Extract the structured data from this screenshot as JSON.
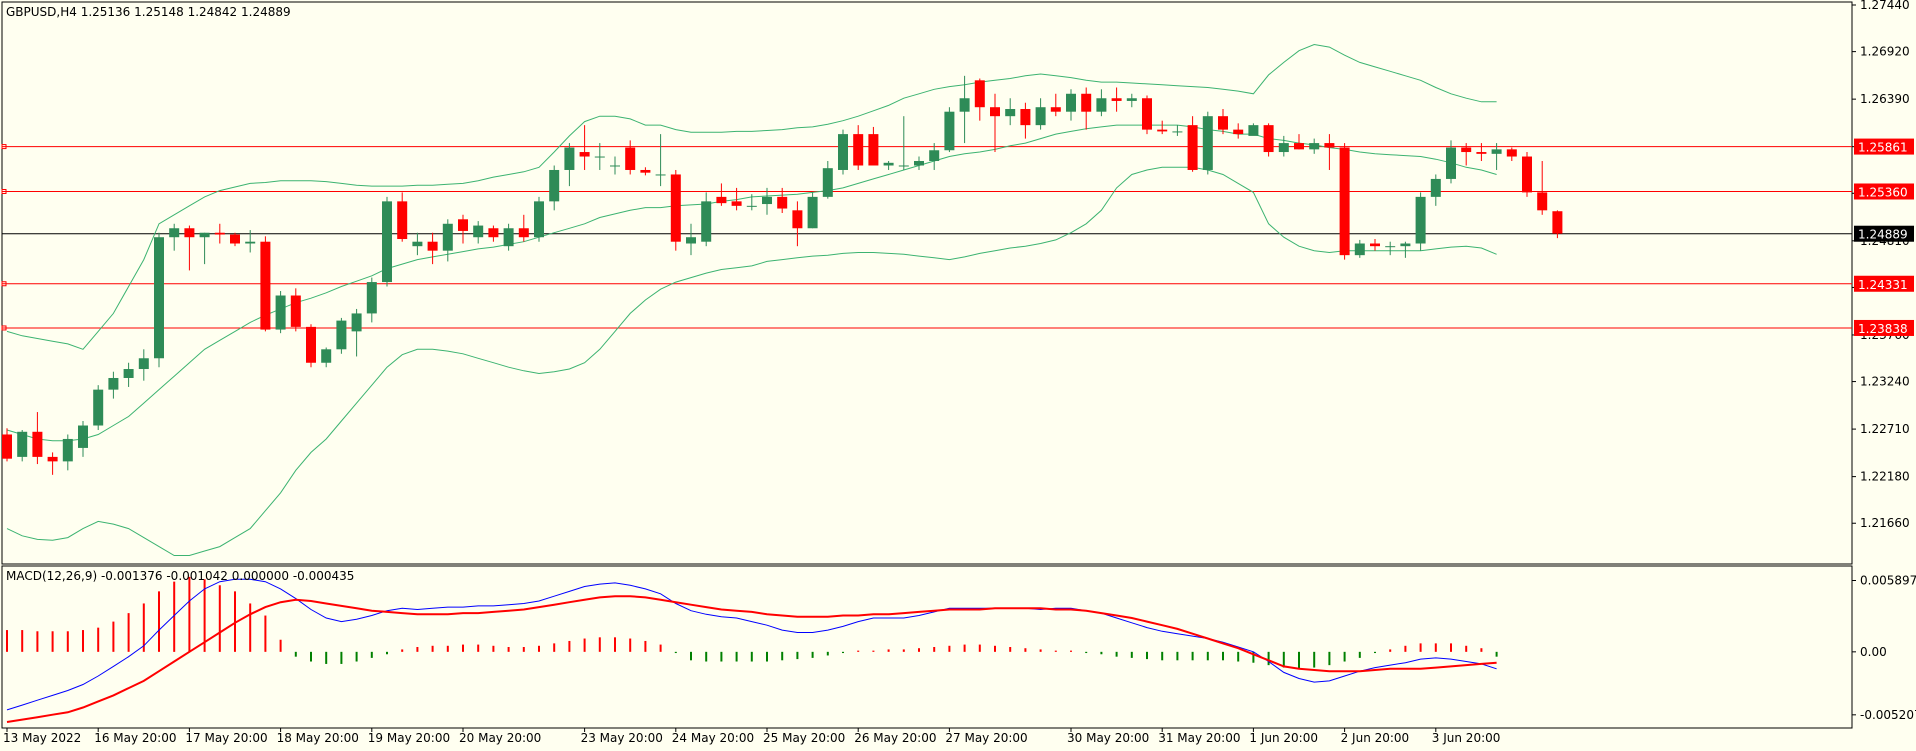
{
  "chart_data": {
    "type": "candlestick",
    "header": "GBPUSD,H4  1.25136 1.25148 1.24842 1.24889",
    "price_ticks": [
      "1.27440",
      "1.26920",
      "1.26390",
      "1.25860",
      "1.25340",
      "1.24810",
      "1.24290",
      "1.23760",
      "1.23240",
      "1.22710",
      "1.22180",
      "1.21660"
    ],
    "price_range": [
      1.2125,
      1.2744
    ],
    "current_price": 1.24889,
    "current_price_label": "1.24889",
    "levels": [
      {
        "price": 1.25861,
        "label": "1.25861"
      },
      {
        "price": 1.2536,
        "label": "1.25360"
      },
      {
        "price": 1.24331,
        "label": "1.24331"
      },
      {
        "price": 1.23838,
        "label": "1.23838"
      }
    ],
    "time_labels": [
      {
        "i": 0,
        "label": "13 May 2022"
      },
      {
        "i": 6,
        "label": "16 May 20:00"
      },
      {
        "i": 12,
        "label": "17 May 20:00"
      },
      {
        "i": 18,
        "label": "18 May 20:00"
      },
      {
        "i": 24,
        "label": "19 May 20:00"
      },
      {
        "i": 30,
        "label": "20 May 20:00"
      },
      {
        "i": 38,
        "label": "23 May 20:00"
      },
      {
        "i": 44,
        "label": "24 May 20:00"
      },
      {
        "i": 50,
        "label": "25 May 20:00"
      },
      {
        "i": 56,
        "label": "26 May 20:00"
      },
      {
        "i": 62,
        "label": "27 May 20:00"
      },
      {
        "i": 70,
        "label": "30 May 20:00"
      },
      {
        "i": 76,
        "label": "31 May 20:00"
      },
      {
        "i": 82,
        "label": "1 Jun 20:00"
      },
      {
        "i": 88,
        "label": "2 Jun 20:00"
      },
      {
        "i": 94,
        "label": "3 Jun 20:00"
      }
    ],
    "candles": [
      [
        1.2265,
        1.2272,
        1.2235,
        1.2238
      ],
      [
        1.224,
        1.227,
        1.2235,
        1.2268
      ],
      [
        1.2268,
        1.229,
        1.2232,
        1.224
      ],
      [
        1.224,
        1.2245,
        1.222,
        1.2235
      ],
      [
        1.2235,
        1.2265,
        1.2225,
        1.226
      ],
      [
        1.225,
        1.228,
        1.224,
        1.2275
      ],
      [
        1.2275,
        1.232,
        1.227,
        1.2315
      ],
      [
        1.2315,
        1.2335,
        1.2305,
        1.2328
      ],
      [
        1.2328,
        1.2345,
        1.2318,
        1.2338
      ],
      [
        1.2338,
        1.236,
        1.2325,
        1.235
      ],
      [
        1.235,
        1.249,
        1.234,
        1.2485
      ],
      [
        1.2485,
        1.25,
        1.247,
        1.2495
      ],
      [
        1.2495,
        1.2498,
        1.2448,
        1.2485
      ],
      [
        1.2485,
        1.249,
        1.2455,
        1.249
      ],
      [
        1.249,
        1.25,
        1.2478,
        1.2488
      ],
      [
        1.2488,
        1.249,
        1.2475,
        1.2478
      ],
      [
        1.2478,
        1.2493,
        1.2468,
        1.248
      ],
      [
        1.248,
        1.2486,
        1.238,
        1.2382
      ],
      [
        1.2382,
        1.2425,
        1.2378,
        1.242
      ],
      [
        1.242,
        1.2428,
        1.238,
        1.2385
      ],
      [
        1.2385,
        1.2388,
        1.234,
        1.2345
      ],
      [
        1.2345,
        1.2362,
        1.234,
        1.236
      ],
      [
        1.236,
        1.2395,
        1.2355,
        1.2392
      ],
      [
        1.238,
        1.2405,
        1.2352,
        1.24
      ],
      [
        1.24,
        1.244,
        1.239,
        1.2435
      ],
      [
        1.2435,
        1.253,
        1.243,
        1.2525
      ],
      [
        1.2525,
        1.2535,
        1.248,
        1.2483
      ],
      [
        1.2475,
        1.249,
        1.2465,
        1.248
      ],
      [
        1.248,
        1.249,
        1.2455,
        1.247
      ],
      [
        1.247,
        1.2505,
        1.2458,
        1.25
      ],
      [
        1.2505,
        1.251,
        1.2478,
        1.2492
      ],
      [
        1.2485,
        1.2503,
        1.2478,
        1.2498
      ],
      [
        1.2495,
        1.2498,
        1.248,
        1.2485
      ],
      [
        1.2475,
        1.25,
        1.247,
        1.2495
      ],
      [
        1.2495,
        1.251,
        1.248,
        1.2485
      ],
      [
        1.2485,
        1.253,
        1.248,
        1.2525
      ],
      [
        1.2525,
        1.2565,
        1.2515,
        1.256
      ],
      [
        1.256,
        1.259,
        1.2542,
        1.2585
      ],
      [
        1.258,
        1.261,
        1.256,
        1.2575
      ],
      [
        1.2575,
        1.259,
        1.256,
        1.2575
      ],
      [
        1.2565,
        1.2575,
        1.2555,
        1.2565
      ],
      [
        1.2585,
        1.2593,
        1.2555,
        1.256
      ],
      [
        1.256,
        1.2563,
        1.2554,
        1.2557
      ],
      [
        1.2555,
        1.26,
        1.2542,
        1.2555
      ],
      [
        1.2555,
        1.256,
        1.247,
        1.248
      ],
      [
        1.2478,
        1.25,
        1.2465,
        1.2485
      ],
      [
        1.248,
        1.2535,
        1.2475,
        1.2525
      ],
      [
        1.253,
        1.2545,
        1.252,
        1.2523
      ],
      [
        1.2525,
        1.254,
        1.2515,
        1.252
      ],
      [
        1.252,
        1.2533,
        1.2515,
        1.252
      ],
      [
        1.2522,
        1.254,
        1.251,
        1.253
      ],
      [
        1.253,
        1.254,
        1.2512,
        1.2517
      ],
      [
        1.2515,
        1.2525,
        1.2475,
        1.2495
      ],
      [
        1.2495,
        1.2535,
        1.2495,
        1.253
      ],
      [
        1.253,
        1.257,
        1.2528,
        1.2562
      ],
      [
        1.256,
        1.2605,
        1.2555,
        1.26
      ],
      [
        1.26,
        1.261,
        1.256,
        1.2565
      ],
      [
        1.26,
        1.2608,
        1.2565,
        1.2565
      ],
      [
        1.2565,
        1.257,
        1.256,
        1.2568
      ],
      [
        1.2565,
        1.262,
        1.256,
        1.2565
      ],
      [
        1.2565,
        1.2575,
        1.256,
        1.257
      ],
      [
        1.257,
        1.259,
        1.256,
        1.2582
      ],
      [
        1.2582,
        1.263,
        1.258,
        1.2625
      ],
      [
        1.2625,
        1.2665,
        1.259,
        1.264
      ],
      [
        1.266,
        1.2662,
        1.2615,
        1.263
      ],
      [
        1.263,
        1.2645,
        1.258,
        1.262
      ],
      [
        1.262,
        1.264,
        1.261,
        1.2628
      ],
      [
        1.2628,
        1.2635,
        1.2595,
        1.261
      ],
      [
        1.261,
        1.264,
        1.2605,
        1.263
      ],
      [
        1.263,
        1.2645,
        1.262,
        1.2625
      ],
      [
        1.2625,
        1.265,
        1.2615,
        1.2645
      ],
      [
        1.2645,
        1.2652,
        1.2605,
        1.2625
      ],
      [
        1.2625,
        1.265,
        1.262,
        1.264
      ],
      [
        1.264,
        1.2652,
        1.2625,
        1.2637
      ],
      [
        1.2637,
        1.2645,
        1.263,
        1.264
      ],
      [
        1.264,
        1.2643,
        1.26,
        1.2605
      ],
      [
        1.2605,
        1.2615,
        1.26,
        1.2603
      ],
      [
        1.2603,
        1.261,
        1.2598,
        1.2603
      ],
      [
        1.261,
        1.262,
        1.2558,
        1.256
      ],
      [
        1.256,
        1.2625,
        1.2555,
        1.262
      ],
      [
        1.262,
        1.2628,
        1.26,
        1.2605
      ],
      [
        1.2605,
        1.2612,
        1.2595,
        1.26
      ],
      [
        1.2598,
        1.2612,
        1.26,
        1.261
      ],
      [
        1.261,
        1.2612,
        1.2575,
        1.258
      ],
      [
        1.258,
        1.2598,
        1.2575,
        1.259
      ],
      [
        1.259,
        1.26,
        1.2583,
        1.2583
      ],
      [
        1.2583,
        1.2595,
        1.2578,
        1.259
      ],
      [
        1.259,
        1.26,
        1.256,
        1.2585
      ],
      [
        1.2585,
        1.259,
        1.246,
        1.2465
      ],
      [
        1.2465,
        1.2482,
        1.2462,
        1.2478
      ],
      [
        1.2478,
        1.2483,
        1.247,
        1.2475
      ],
      [
        1.2475,
        1.248,
        1.2465,
        1.2475
      ],
      [
        1.2475,
        1.248,
        1.2462,
        1.2478
      ],
      [
        1.2478,
        1.2535,
        1.247,
        1.253
      ],
      [
        1.253,
        1.2555,
        1.252,
        1.255
      ],
      [
        1.255,
        1.2593,
        1.2545,
        1.2585
      ],
      [
        1.2585,
        1.259,
        1.2565,
        1.258
      ],
      [
        1.258,
        1.259,
        1.257,
        1.2578
      ],
      [
        1.2578,
        1.259,
        1.256,
        1.2583
      ],
      [
        1.2583,
        1.2585,
        1.257,
        1.2575
      ],
      [
        1.2575,
        1.258,
        1.253,
        1.2535
      ],
      [
        1.2535,
        1.257,
        1.251,
        1.2515
      ],
      [
        1.2514,
        1.2515,
        1.2484,
        1.2489
      ]
    ],
    "bb_upper": [
      1.238,
      1.2375,
      1.2372,
      1.2369,
      1.2366,
      1.236,
      1.238,
      1.24,
      1.243,
      1.246,
      1.25,
      1.251,
      1.252,
      1.253,
      1.2537,
      1.2541,
      1.2545,
      1.2546,
      1.2548,
      1.2548,
      1.2548,
      1.2547,
      1.2545,
      1.2543,
      1.2542,
      1.2542,
      1.2542,
      1.2543,
      1.2543,
      1.2544,
      1.2545,
      1.2548,
      1.2552,
      1.2555,
      1.2558,
      1.2563,
      1.258,
      1.2598,
      1.2614,
      1.262,
      1.262,
      1.2617,
      1.261,
      1.261,
      1.2605,
      1.2602,
      1.2602,
      1.2602,
      1.2603,
      1.2603,
      1.2604,
      1.2605,
      1.2607,
      1.2608,
      1.2611,
      1.2615,
      1.262,
      1.2626,
      1.2632,
      1.264,
      1.2645,
      1.265,
      1.2653,
      1.2655,
      1.2658,
      1.266,
      1.2662,
      1.2665,
      1.2667,
      1.2665,
      1.2663,
      1.266,
      1.2658,
      1.2658,
      1.2657,
      1.2656,
      1.2655,
      1.2654,
      1.2653,
      1.2652,
      1.265,
      1.2648,
      1.2645,
      1.2666,
      1.268,
      1.2693,
      1.27,
      1.2697,
      1.2688,
      1.268,
      1.2675,
      1.267,
      1.2665,
      1.266,
      1.2652,
      1.2645,
      1.264,
      1.2636,
      1.2636
    ],
    "bb_middle": [
      1.227,
      1.2265,
      1.226,
      1.2258,
      1.2258,
      1.226,
      1.2265,
      1.2275,
      1.2285,
      1.23,
      1.2315,
      1.233,
      1.2345,
      1.236,
      1.237,
      1.238,
      1.239,
      1.2398,
      1.2405,
      1.2412,
      1.2417,
      1.2423,
      1.243,
      1.2436,
      1.2442,
      1.245,
      1.2455,
      1.246,
      1.2463,
      1.2466,
      1.2469,
      1.2472,
      1.2474,
      1.2477,
      1.248,
      1.2485,
      1.249,
      1.2495,
      1.25,
      1.2507,
      1.2511,
      1.2515,
      1.2518,
      1.2518,
      1.252,
      1.2521,
      1.2522,
      1.2525,
      1.2527,
      1.253,
      1.2531,
      1.2532,
      1.2533,
      1.2535,
      1.2537,
      1.254,
      1.2545,
      1.255,
      1.2555,
      1.256,
      1.2565,
      1.257,
      1.2575,
      1.2578,
      1.258,
      1.2583,
      1.2587,
      1.259,
      1.2595,
      1.26,
      1.2603,
      1.2606,
      1.2608,
      1.261,
      1.261,
      1.261,
      1.261,
      1.261,
      1.2608,
      1.2605,
      1.2603,
      1.26,
      1.26,
      1.2595,
      1.2593,
      1.259,
      1.2588,
      1.2585,
      1.2583,
      1.258,
      1.2578,
      1.2577,
      1.2576,
      1.2575,
      1.2572,
      1.2568,
      1.2563,
      1.256,
      1.2555
    ],
    "bb_lower": [
      1.216,
      1.2152,
      1.2148,
      1.2147,
      1.215,
      1.216,
      1.2168,
      1.2165,
      1.216,
      1.215,
      1.214,
      1.213,
      1.213,
      1.2135,
      1.214,
      1.215,
      1.216,
      1.218,
      1.22,
      1.2225,
      1.2245,
      1.226,
      1.228,
      1.23,
      1.232,
      1.234,
      1.2354,
      1.236,
      1.236,
      1.2358,
      1.2355,
      1.235,
      1.2345,
      1.234,
      1.2336,
      1.2333,
      1.2335,
      1.2338,
      1.2345,
      1.236,
      1.238,
      1.24,
      1.2415,
      1.2427,
      1.2435,
      1.244,
      1.2445,
      1.2449,
      1.2451,
      1.2453,
      1.2458,
      1.246,
      1.2462,
      1.2464,
      1.2465,
      1.2467,
      1.2468,
      1.2468,
      1.2467,
      1.2466,
      1.2464,
      1.2462,
      1.246,
      1.2463,
      1.2467,
      1.247,
      1.2473,
      1.2475,
      1.2478,
      1.2482,
      1.249,
      1.25,
      1.2515,
      1.254,
      1.2555,
      1.256,
      1.2563,
      1.2563,
      1.2563,
      1.256,
      1.2555,
      1.2545,
      1.2535,
      1.25,
      1.2485,
      1.2475,
      1.247,
      1.2468,
      1.247,
      1.247,
      1.247,
      1.247,
      1.247,
      1.247,
      1.2472,
      1.2474,
      1.2475,
      1.2473,
      1.2466
    ],
    "macd": {
      "header": "MACD(12,26,9) -0.001376 -0.001042 0.000000 -0.000435",
      "ticks": [
        "0.005897",
        "0.00",
        "-0.005207"
      ],
      "range": [
        -0.0058,
        0.0066
      ],
      "histogram": [
        0.0018,
        0.0018,
        0.0017,
        0.0017,
        0.0017,
        0.0018,
        0.002,
        0.0025,
        0.0032,
        0.004,
        0.005,
        0.0058,
        0.0062,
        0.006,
        0.0055,
        0.005,
        0.004,
        0.003,
        0.001,
        -0.0004,
        -0.0008,
        -0.001,
        -0.001,
        -0.0008,
        -0.0005,
        -0.0002,
        0.0002,
        0.0004,
        0.0005,
        0.0005,
        0.0006,
        0.0006,
        0.0005,
        0.0004,
        0.0004,
        0.0005,
        0.0007,
        0.0009,
        0.0011,
        0.0012,
        0.0012,
        0.0011,
        0.0009,
        0.0006,
        -0.0001,
        -0.0007,
        -0.0008,
        -0.0008,
        -0.0008,
        -0.0008,
        -0.0008,
        -0.0007,
        -0.0006,
        -0.0005,
        -0.0003,
        -0.0001,
        0.0001,
        0.0001,
        0.0002,
        0.0002,
        0.0003,
        0.0004,
        0.0005,
        0.0006,
        0.0006,
        0.0005,
        0.0004,
        0.0003,
        0.0002,
        0.0001,
        0.0001,
        -0.0001,
        -0.0002,
        -0.0004,
        -0.0005,
        -0.0006,
        -0.0007,
        -0.0007,
        -0.0007,
        -0.0007,
        -0.0007,
        -0.0008,
        -0.0009,
        -0.0011,
        -0.0013,
        -0.0014,
        -0.0013,
        -0.0011,
        -0.0008,
        -0.0005,
        -0.0001,
        0.0002,
        0.0005,
        0.0007,
        0.0007,
        0.0007,
        0.0005,
        0.0003,
        -0.0004
      ],
      "main": [
        -0.0048,
        -0.0044,
        -0.004,
        -0.0036,
        -0.0032,
        -0.0027,
        -0.002,
        -0.0012,
        -0.0004,
        0.0005,
        0.0018,
        0.003,
        0.0042,
        0.0052,
        0.0058,
        0.006,
        0.006,
        0.0058,
        0.0052,
        0.0044,
        0.0035,
        0.0028,
        0.0025,
        0.0027,
        0.003,
        0.0034,
        0.0036,
        0.0035,
        0.0036,
        0.0037,
        0.0037,
        0.0038,
        0.0038,
        0.0039,
        0.004,
        0.0042,
        0.0046,
        0.005,
        0.0054,
        0.0056,
        0.0057,
        0.0055,
        0.0052,
        0.0048,
        0.004,
        0.0034,
        0.0031,
        0.0029,
        0.0028,
        0.0025,
        0.0022,
        0.0018,
        0.0016,
        0.0016,
        0.0018,
        0.0021,
        0.0025,
        0.0028,
        0.0028,
        0.0028,
        0.003,
        0.0033,
        0.0036,
        0.0036,
        0.0036,
        0.0036,
        0.0036,
        0.0036,
        0.0035,
        0.0036,
        0.0036,
        0.0034,
        0.0032,
        0.0028,
        0.0024,
        0.002,
        0.0017,
        0.0015,
        0.0013,
        0.0011,
        0.0008,
        0.0004,
        0.0,
        -0.0008,
        -0.0017,
        -0.0022,
        -0.0025,
        -0.0024,
        -0.002,
        -0.0016,
        -0.0013,
        -0.0011,
        -0.0009,
        -0.0006,
        -0.0005,
        -0.0006,
        -0.0008,
        -0.001,
        -0.0014
      ],
      "signal": [
        -0.0058,
        -0.0056,
        -0.0054,
        -0.0052,
        -0.005,
        -0.0046,
        -0.0041,
        -0.0036,
        -0.003,
        -0.0024,
        -0.0016,
        -0.0008,
        0.0,
        0.0008,
        0.0016,
        0.0024,
        0.0031,
        0.0037,
        0.0041,
        0.0043,
        0.0042,
        0.004,
        0.0038,
        0.0036,
        0.0034,
        0.0033,
        0.0032,
        0.0031,
        0.0031,
        0.0031,
        0.0032,
        0.0032,
        0.0033,
        0.0034,
        0.0035,
        0.0037,
        0.0039,
        0.0041,
        0.0043,
        0.0045,
        0.0046,
        0.0046,
        0.0045,
        0.0043,
        0.0041,
        0.0039,
        0.0037,
        0.0035,
        0.0034,
        0.0033,
        0.0031,
        0.003,
        0.0029,
        0.0029,
        0.0029,
        0.003,
        0.003,
        0.0031,
        0.0031,
        0.0032,
        0.0033,
        0.0034,
        0.0035,
        0.0035,
        0.0035,
        0.0036,
        0.0036,
        0.0036,
        0.0036,
        0.0035,
        0.0035,
        0.0034,
        0.0032,
        0.003,
        0.0028,
        0.0025,
        0.0022,
        0.0019,
        0.0015,
        0.0011,
        0.0007,
        0.0003,
        -0.0002,
        -0.0007,
        -0.0012,
        -0.0014,
        -0.0015,
        -0.0016,
        -0.0016,
        -0.0016,
        -0.0015,
        -0.0014,
        -0.0014,
        -0.0014,
        -0.0013,
        -0.0012,
        -0.0011,
        -0.001,
        -0.0009
      ]
    }
  },
  "colors": {
    "background": "#fffff0",
    "axis": "#000000",
    "bull": "#2e8b57",
    "bear": "#ff0000",
    "bands": "#3cb371",
    "level": "#ff0000",
    "current": "#000000",
    "macd_main": "#0000ff",
    "macd_signal": "#ff0000"
  }
}
